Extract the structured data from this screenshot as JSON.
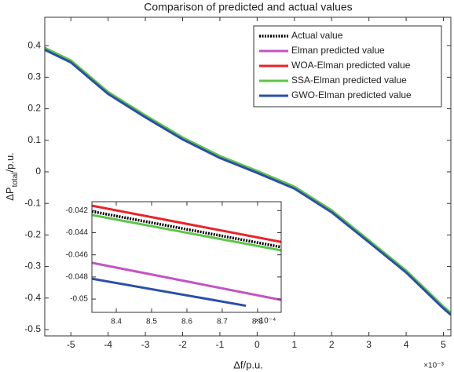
{
  "chart_data": [
    {
      "type": "line",
      "title": "Comparison of predicted and actual values",
      "xlabel": "Δf/p.u.",
      "ylabel": [
        "ΔP",
        "total",
        "/p.u."
      ],
      "x_exponent_label": "×10⁻³",
      "x": [
        -5.7,
        -5,
        -4,
        -3,
        -2,
        -1,
        0,
        1,
        2,
        3,
        4,
        5,
        5.2
      ],
      "xlim": [
        -5.7,
        5.2
      ],
      "xticks": [
        -5,
        -4,
        -3,
        -2,
        -1,
        0,
        1,
        2,
        3,
        4,
        5
      ],
      "ylim": [
        -0.52,
        0.49
      ],
      "yticks": [
        0.4,
        0.3,
        0.2,
        0.1,
        0,
        -0.1,
        -0.2,
        -0.3,
        -0.4,
        -0.5
      ],
      "legend": "upper right",
      "series": [
        {
          "name": "Actual value",
          "color": "#000000",
          "style": "dotted",
          "values": [
            0.39,
            0.35,
            0.25,
            0.176,
            0.106,
            0.047,
            0.0,
            -0.05,
            -0.125,
            -0.22,
            -0.316,
            -0.43,
            -0.45
          ]
        },
        {
          "name": "Elman predicted value",
          "color": "#c255c2",
          "style": "solid",
          "values": [
            0.39,
            0.35,
            0.25,
            0.176,
            0.106,
            0.047,
            0.0,
            -0.05,
            -0.125,
            -0.22,
            -0.316,
            -0.43,
            -0.45
          ]
        },
        {
          "name": "WOA-Elman predicted value",
          "color": "#e8232a",
          "style": "solid",
          "values": [
            0.39,
            0.35,
            0.25,
            0.176,
            0.106,
            0.047,
            0.0,
            -0.05,
            -0.125,
            -0.22,
            -0.316,
            -0.43,
            -0.45
          ]
        },
        {
          "name": "SSA-Elman predicted value",
          "color": "#5ec54a",
          "style": "solid",
          "values": [
            0.393,
            0.353,
            0.253,
            0.179,
            0.109,
            0.05,
            0.003,
            -0.047,
            -0.122,
            -0.217,
            -0.313,
            -0.427,
            -0.447
          ]
        },
        {
          "name": "GWO-Elman predicted value",
          "color": "#2b4fa8",
          "style": "solid",
          "values": [
            0.387,
            0.347,
            0.247,
            0.173,
            0.103,
            0.044,
            -0.003,
            -0.053,
            -0.128,
            -0.223,
            -0.319,
            -0.433,
            -0.453
          ]
        }
      ]
    },
    {
      "type": "line",
      "x_exponent_label": "×10⁻⁴",
      "xlim": [
        8.331,
        8.867
      ],
      "xticks": [
        8.4,
        8.5,
        8.6,
        8.7,
        8.8
      ],
      "ylim": [
        -0.0512,
        -0.0412
      ],
      "yticks": [
        -0.042,
        -0.044,
        -0.046,
        -0.048,
        -0.05
      ],
      "series": [
        {
          "color": "#e8232a",
          "style": "solid",
          "x": [
            8.331,
            8.867
          ],
          "values": [
            -0.04156,
            -0.04484
          ]
        },
        {
          "color": "#000000",
          "style": "dotted",
          "x": [
            8.331,
            8.867
          ],
          "values": [
            -0.04208,
            -0.0453
          ]
        },
        {
          "color": "#5ec54a",
          "style": "solid",
          "x": [
            8.331,
            8.867
          ],
          "values": [
            -0.0424,
            -0.0456
          ]
        },
        {
          "color": "#c255c2",
          "style": "solid",
          "x": [
            8.331,
            8.867
          ],
          "values": [
            -0.04672,
            -0.05008
          ]
        },
        {
          "color": "#2b4fa8",
          "style": "solid",
          "x": [
            8.331,
            8.767
          ],
          "values": [
            -0.04816,
            -0.0506
          ]
        }
      ]
    }
  ]
}
